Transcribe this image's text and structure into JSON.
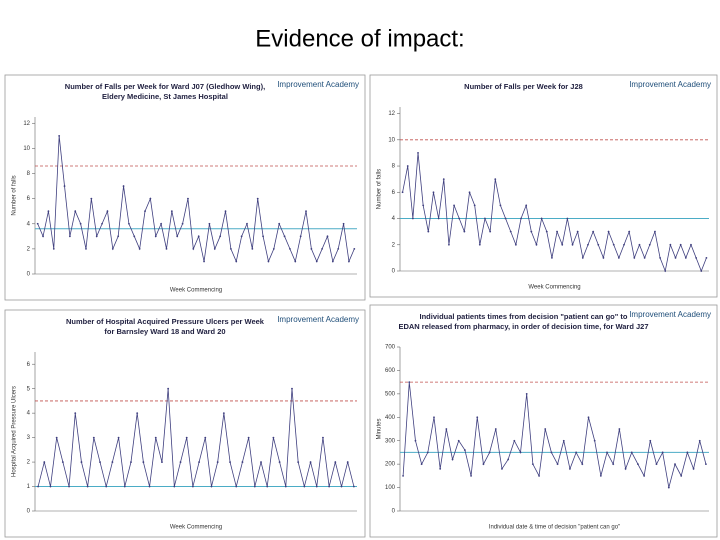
{
  "title": "Evidence of impact:",
  "chart_data": [
    {
      "type": "line",
      "logo": "Improvement Academy",
      "title": [
        "Number of Falls per Week for Ward J07 (Gledhow Wing),",
        "Eldery Medicine, St James Hospital"
      ],
      "y_label": "Number of falls",
      "x_label": "Week Commencing",
      "ylim": [
        0,
        12.5
      ],
      "yticks": [
        0,
        2,
        4,
        6,
        8,
        10,
        12
      ],
      "color": "#3f3f7f",
      "ucl": 8.6,
      "mean": 3.6,
      "values": [
        4,
        3,
        5,
        2,
        11,
        7,
        3,
        5,
        4,
        2,
        6,
        3,
        4,
        5,
        2,
        3,
        7,
        4,
        3,
        2,
        5,
        6,
        3,
        4,
        2,
        5,
        3,
        4,
        6,
        2,
        3,
        1,
        4,
        2,
        3,
        5,
        2,
        1,
        3,
        4,
        2,
        6,
        3,
        1,
        2,
        4,
        3,
        2,
        1,
        3,
        5,
        2,
        1,
        2,
        3,
        1,
        2,
        4,
        1,
        2
      ]
    },
    {
      "type": "line",
      "logo": "Improvement Academy",
      "title": [
        "Number of Falls per Week for J28"
      ],
      "y_label": "Number of falls",
      "x_label": "Week Commencing",
      "ylim": [
        0,
        12.5
      ],
      "yticks": [
        0,
        2,
        4,
        6,
        8,
        10,
        12
      ],
      "color": "#3f3f7f",
      "ucl": 10,
      "mean": 4,
      "values": [
        6,
        8,
        4,
        9,
        5,
        3,
        6,
        4,
        7,
        2,
        5,
        4,
        3,
        6,
        5,
        2,
        4,
        3,
        7,
        5,
        4,
        3,
        2,
        4,
        5,
        3,
        2,
        4,
        3,
        1,
        3,
        2,
        4,
        2,
        3,
        1,
        2,
        3,
        2,
        1,
        3,
        2,
        1,
        2,
        3,
        1,
        2,
        1,
        2,
        3,
        1,
        0,
        2,
        1,
        2,
        1,
        2,
        1,
        0,
        1
      ]
    },
    {
      "type": "line",
      "logo": "Improvement Academy",
      "title": [
        "Number of Hospital Acquired Pressure Ulcers per Week",
        "for Barnsley Ward 18 and Ward 20"
      ],
      "y_label": "Hospital Acquired Pressure Ulcers",
      "x_label": "Week Commencing",
      "ylim": [
        0,
        6.5
      ],
      "yticks": [
        0,
        1,
        2,
        3,
        4,
        5,
        6
      ],
      "color": "#3f3f7f",
      "ucl": 4.5,
      "mean": 1,
      "values": [
        1,
        2,
        1,
        3,
        2,
        1,
        4,
        2,
        1,
        3,
        2,
        1,
        2,
        3,
        1,
        2,
        4,
        2,
        1,
        3,
        2,
        5,
        1,
        2,
        3,
        1,
        2,
        3,
        1,
        2,
        4,
        2,
        1,
        2,
        3,
        1,
        2,
        1,
        3,
        2,
        1,
        5,
        2,
        1,
        2,
        1,
        3,
        1,
        2,
        1,
        2,
        1
      ]
    },
    {
      "type": "line",
      "logo": "Improvement Academy",
      "title": [
        "Individual patients times from decision \"patient can go\" to",
        "EDAN released from pharmacy, in order of decision time, for Ward J27"
      ],
      "y_label": "Minutes",
      "x_label": "Individual date & time of decision \"patient can go\"",
      "ylim": [
        0,
        700
      ],
      "yticks": [
        0,
        100,
        200,
        300,
        400,
        500,
        600,
        700
      ],
      "color": "#3f3f7f",
      "ucl": 550,
      "mean": 250,
      "values": [
        150,
        550,
        300,
        200,
        250,
        400,
        180,
        350,
        220,
        300,
        260,
        150,
        400,
        200,
        250,
        350,
        180,
        220,
        300,
        250,
        500,
        200,
        150,
        350,
        250,
        200,
        300,
        180,
        250,
        200,
        400,
        300,
        150,
        250,
        200,
        350,
        180,
        250,
        200,
        150,
        300,
        200,
        250,
        100,
        200,
        150,
        250,
        180,
        300,
        200
      ]
    }
  ]
}
